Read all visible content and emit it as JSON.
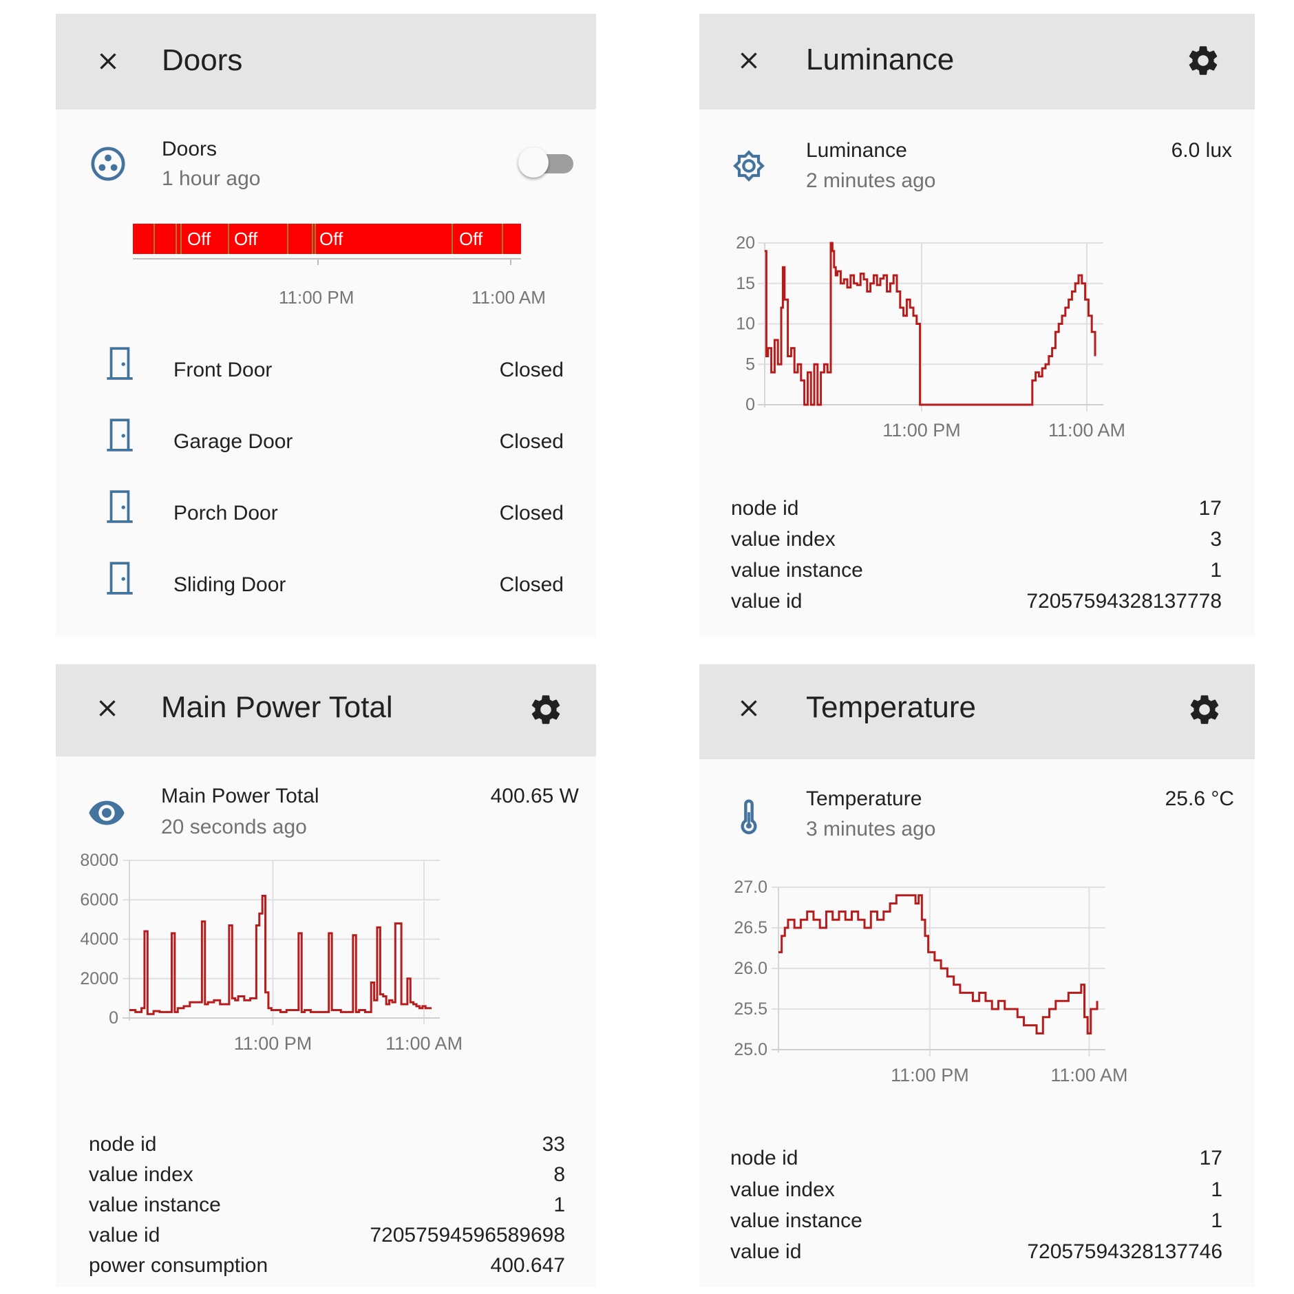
{
  "colors": {
    "accent": "#44739e",
    "line": "#b71c1c",
    "timeline_off": "#ff0000",
    "header": "#e5e5e5",
    "card": "#fafafa"
  },
  "doors": {
    "title": "Doors",
    "entity_name": "Doors",
    "entity_time": "1 hour ago",
    "toggle_on": false,
    "timeline": {
      "labels": [
        "Off",
        "Off",
        "Off",
        "Off"
      ],
      "x_ticks": [
        "11:00 PM",
        "11:00 AM"
      ]
    },
    "rows": [
      {
        "name": "Front Door",
        "state": "Closed"
      },
      {
        "name": "Garage Door",
        "state": "Closed"
      },
      {
        "name": "Porch Door",
        "state": "Closed"
      },
      {
        "name": "Sliding Door",
        "state": "Closed"
      }
    ]
  },
  "luminance": {
    "title": "Luminance",
    "entity_name": "Luminance",
    "entity_time": "2 minutes ago",
    "state": "6.0 lux",
    "attributes": [
      {
        "key": "node id",
        "value": "17"
      },
      {
        "key": "value index",
        "value": "3"
      },
      {
        "key": "value instance",
        "value": "1"
      },
      {
        "key": "value id",
        "value": "72057594328137778"
      }
    ]
  },
  "power": {
    "title": "Main Power Total",
    "entity_name": "Main Power Total",
    "entity_time": "20 seconds ago",
    "state": "400.65 W",
    "attributes": [
      {
        "key": "node id",
        "value": "33"
      },
      {
        "key": "value index",
        "value": "8"
      },
      {
        "key": "value instance",
        "value": "1"
      },
      {
        "key": "value id",
        "value": "72057594596589698"
      },
      {
        "key": "power consumption",
        "value": "400.647"
      }
    ]
  },
  "temperature": {
    "title": "Temperature",
    "entity_name": "Temperature",
    "entity_time": "3 minutes ago",
    "state": "25.6 °C",
    "attributes": [
      {
        "key": "node id",
        "value": "17"
      },
      {
        "key": "value index",
        "value": "1"
      },
      {
        "key": "value instance",
        "value": "1"
      },
      {
        "key": "value id",
        "value": "72057594328137746"
      }
    ]
  },
  "chart_data": [
    {
      "id": "luminance",
      "type": "line",
      "step": true,
      "ylim": [
        0,
        20
      ],
      "y_ticks": [
        0,
        5,
        10,
        15,
        20
      ],
      "x_ticks": [
        {
          "label": "11:00 PM",
          "t": 0.475
        },
        {
          "label": "11:00 AM",
          "t": 0.975
        }
      ],
      "series": [
        {
          "x": [
            0,
            0.005,
            0.01,
            0.02,
            0.03,
            0.04,
            0.05,
            0.055,
            0.06,
            0.07,
            0.08,
            0.09,
            0.1,
            0.11,
            0.12,
            0.13,
            0.14,
            0.15,
            0.16,
            0.17,
            0.18,
            0.19,
            0.2,
            0.205,
            0.21,
            0.215,
            0.22,
            0.23,
            0.24,
            0.25,
            0.26,
            0.27,
            0.28,
            0.29,
            0.3,
            0.31,
            0.32,
            0.33,
            0.34,
            0.35,
            0.36,
            0.37,
            0.38,
            0.39,
            0.4,
            0.41,
            0.42,
            0.43,
            0.44,
            0.45,
            0.46,
            0.47,
            0.475,
            0.48,
            0.5,
            0.55,
            0.6,
            0.65,
            0.7,
            0.75,
            0.8,
            0.81,
            0.82,
            0.83,
            0.84,
            0.85,
            0.86,
            0.87,
            0.88,
            0.89,
            0.9,
            0.91,
            0.92,
            0.93,
            0.94,
            0.95,
            0.96,
            0.97,
            0.98,
            0.99,
            1.0
          ],
          "y": [
            19,
            6,
            7,
            4,
            8,
            5,
            12,
            17,
            13,
            6,
            7,
            4,
            5,
            3,
            0,
            4,
            0,
            5,
            0,
            4,
            5,
            4,
            20,
            19,
            17,
            16,
            16.5,
            15,
            15.5,
            14.5,
            16,
            15,
            14.8,
            16.2,
            15.5,
            14,
            15,
            16,
            14.8,
            15.6,
            16,
            14,
            15,
            16,
            14,
            12,
            11,
            13,
            12,
            11,
            10,
            0,
            0,
            0,
            0,
            0,
            0,
            0,
            0,
            0,
            0,
            3,
            4,
            3.5,
            4.5,
            5,
            6,
            7,
            9,
            10,
            11,
            12,
            13,
            14,
            15,
            16,
            15,
            13,
            11,
            9,
            6
          ]
        }
      ]
    },
    {
      "id": "power",
      "type": "line",
      "step": true,
      "ylim": [
        0,
        8000
      ],
      "y_ticks": [
        0,
        2000,
        4000,
        6000,
        8000
      ],
      "x_ticks": [
        {
          "label": "11:00 PM",
          "t": 0.475
        },
        {
          "label": "11:00 AM",
          "t": 0.975
        }
      ],
      "series": [
        {
          "x": [
            0,
            0.02,
            0.04,
            0.05,
            0.06,
            0.08,
            0.1,
            0.14,
            0.15,
            0.16,
            0.18,
            0.2,
            0.24,
            0.25,
            0.26,
            0.28,
            0.3,
            0.33,
            0.34,
            0.35,
            0.36,
            0.38,
            0.4,
            0.42,
            0.43,
            0.44,
            0.45,
            0.46,
            0.47,
            0.5,
            0.52,
            0.56,
            0.57,
            0.58,
            0.6,
            0.65,
            0.66,
            0.67,
            0.7,
            0.74,
            0.75,
            0.76,
            0.78,
            0.8,
            0.81,
            0.82,
            0.83,
            0.84,
            0.85,
            0.86,
            0.87,
            0.88,
            0.9,
            0.92,
            0.93,
            0.94,
            0.95,
            0.96,
            0.97,
            0.98,
            1.0
          ],
          "y": [
            400,
            300,
            500,
            4400,
            200,
            350,
            300,
            4300,
            300,
            500,
            600,
            800,
            4900,
            700,
            800,
            900,
            700,
            4700,
            1000,
            900,
            1100,
            900,
            1000,
            4700,
            5300,
            6200,
            1300,
            500,
            400,
            300,
            400,
            4300,
            300,
            400,
            300,
            300,
            4300,
            400,
            300,
            4200,
            300,
            400,
            300,
            1800,
            900,
            4600,
            1200,
            1100,
            700,
            900,
            800,
            4800,
            700,
            2000,
            800,
            700,
            600,
            500,
            600,
            500,
            500
          ]
        }
      ]
    },
    {
      "id": "temperature",
      "type": "line",
      "step": true,
      "ylim": [
        25.0,
        27.0
      ],
      "y_ticks": [
        25.0,
        25.5,
        26.0,
        26.5,
        27.0
      ],
      "x_ticks": [
        {
          "label": "11:00 PM",
          "t": 0.475
        },
        {
          "label": "11:00 AM",
          "t": 0.975
        }
      ],
      "series": [
        {
          "x": [
            0,
            0.01,
            0.02,
            0.03,
            0.05,
            0.07,
            0.09,
            0.11,
            0.13,
            0.15,
            0.17,
            0.19,
            0.21,
            0.23,
            0.25,
            0.27,
            0.29,
            0.31,
            0.33,
            0.35,
            0.37,
            0.39,
            0.41,
            0.43,
            0.44,
            0.45,
            0.46,
            0.47,
            0.49,
            0.51,
            0.53,
            0.55,
            0.57,
            0.59,
            0.61,
            0.63,
            0.65,
            0.67,
            0.69,
            0.71,
            0.73,
            0.75,
            0.77,
            0.79,
            0.81,
            0.83,
            0.85,
            0.87,
            0.89,
            0.91,
            0.93,
            0.95,
            0.96,
            0.97,
            0.98,
            0.99,
            1.0
          ],
          "y": [
            26.2,
            26.4,
            26.5,
            26.6,
            26.5,
            26.6,
            26.7,
            26.6,
            26.5,
            26.7,
            26.6,
            26.7,
            26.6,
            26.7,
            26.6,
            26.5,
            26.7,
            26.6,
            26.7,
            26.8,
            26.9,
            26.9,
            26.9,
            26.8,
            26.9,
            26.6,
            26.4,
            26.2,
            26.1,
            26.0,
            25.9,
            25.8,
            25.7,
            25.7,
            25.6,
            25.7,
            25.6,
            25.5,
            25.6,
            25.5,
            25.5,
            25.4,
            25.3,
            25.3,
            25.2,
            25.4,
            25.5,
            25.6,
            25.6,
            25.7,
            25.7,
            25.8,
            25.4,
            25.2,
            25.5,
            25.5,
            25.6
          ]
        }
      ]
    }
  ]
}
